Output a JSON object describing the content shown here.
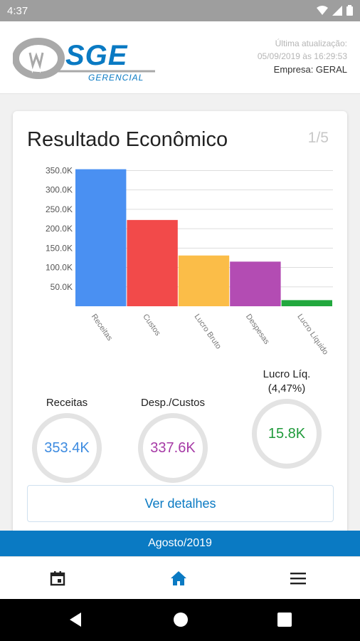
{
  "status_bar": {
    "time": "4:37"
  },
  "header": {
    "logo_text": "SGE",
    "logo_subtext": "GERENCIAL",
    "last_update_label": "Última atualização:",
    "last_update_value": "05/09/2019 às 16:29:53",
    "company": "Empresa: GERAL"
  },
  "card": {
    "title": "Resultado Econômico",
    "page": "1/5",
    "details_button": "Ver detalhes"
  },
  "chart_data": {
    "type": "bar",
    "categories": [
      "Receitas",
      "Custos",
      "Lucro Bruto",
      "Despesas",
      "Lucro Líquido"
    ],
    "values": [
      353400,
      222500,
      130900,
      115100,
      15800
    ],
    "colors": [
      "#4a90f2",
      "#f24a4a",
      "#fbbd48",
      "#b34cb3",
      "#22a83e"
    ],
    "yticks": [
      "50.0K",
      "100.0K",
      "150.0K",
      "200.0K",
      "250.0K",
      "300.0K",
      "350.0K"
    ],
    "ytick_values": [
      50000,
      100000,
      150000,
      200000,
      250000,
      300000,
      350000
    ],
    "ylim": [
      0,
      360000
    ],
    "grid": true
  },
  "kpis": [
    {
      "label": "Receitas",
      "value": "353.4K",
      "color": "#3d8be0"
    },
    {
      "label": "Desp./Custos",
      "value": "337.6K",
      "color": "#a63aa6"
    },
    {
      "label": "Lucro Líq.",
      "sublabel": "(4,47%)",
      "value": "15.8K",
      "color": "#1f9a3a"
    }
  ],
  "period": "Agosto/2019",
  "bottom_nav": {
    "items": [
      {
        "icon": "calendar-icon"
      },
      {
        "icon": "home-icon",
        "active": true
      },
      {
        "icon": "menu-icon"
      }
    ]
  }
}
